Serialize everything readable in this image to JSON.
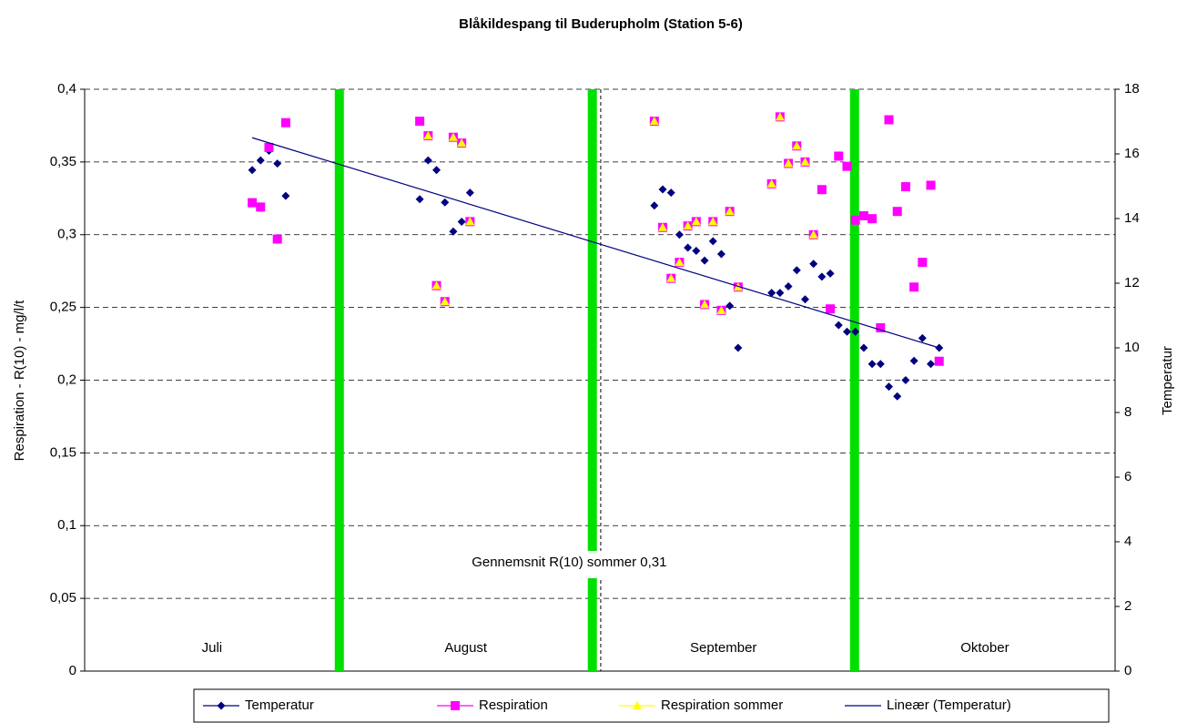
{
  "chart_data": {
    "type": "scatter",
    "title": "Blåkildespang til Buderupholm (Station 5-6)",
    "ylabel": "Respiration - R(10) - mg/l/t",
    "y2label": "Temperatur",
    "annotation": "Gennemsnit R(10) sommer 0,31",
    "month_labels": [
      "Juli",
      "August",
      "September",
      "Oktober"
    ],
    "separators": [
      30.4,
      60.6,
      91.9
    ],
    "separator_color": "#00e000",
    "reference_line": 61.6,
    "xlim": [
      0,
      123
    ],
    "ylim": [
      0,
      0.4
    ],
    "yticks": [
      0,
      {
        "value": 0.05,
        "label": "0,05"
      },
      {
        "value": 0.1,
        "label": "0,1"
      },
      {
        "value": 0.15,
        "label": "0,15"
      },
      {
        "value": 0.2,
        "label": "0,2"
      },
      {
        "value": 0.25,
        "label": "0,25"
      },
      {
        "value": 0.3,
        "label": "0,3"
      },
      {
        "value": 0.35,
        "label": "0,35"
      },
      {
        "value": 0.4,
        "label": "0,4"
      }
    ],
    "y2lim": [
      0,
      18
    ],
    "y2ticks": [
      0,
      2,
      4,
      6,
      8,
      10,
      12,
      14,
      16,
      18
    ],
    "grid": true,
    "legend": "bottom",
    "series": [
      {
        "name": "Temperatur",
        "color": "#000080",
        "marker": "diamond",
        "axis": "y2",
        "x": [
          20,
          21,
          22,
          23,
          24,
          40,
          41,
          42,
          43,
          44,
          45,
          46,
          68,
          69,
          70,
          71,
          72,
          73,
          74,
          75,
          76,
          77,
          78,
          82,
          83,
          84,
          85,
          86,
          87,
          88,
          89,
          90,
          91,
          92,
          93,
          94,
          95,
          96,
          97,
          98,
          99,
          100,
          101,
          102
        ],
        "values": [
          15.5,
          15.8,
          16.1,
          15.7,
          14.7,
          14.6,
          15.8,
          15.5,
          14.5,
          13.6,
          13.9,
          14.8,
          14.4,
          14.9,
          14.8,
          13.5,
          13.1,
          13.0,
          12.7,
          13.3,
          12.9,
          11.3,
          10.0,
          11.7,
          11.7,
          11.9,
          12.4,
          11.5,
          12.6,
          12.2,
          12.3,
          10.7,
          10.5,
          10.5,
          10.0,
          9.5,
          9.5,
          8.8,
          8.5,
          9.0,
          9.6,
          10.3,
          9.5,
          10.0
        ]
      },
      {
        "name": "Respiration",
        "color": "#ff00ff",
        "marker": "square",
        "x": [
          20,
          21,
          22,
          23,
          24,
          40,
          41,
          42,
          43,
          44,
          45,
          46,
          68,
          69,
          70,
          71,
          72,
          73,
          74,
          75,
          76,
          77,
          78,
          82,
          83,
          84,
          85,
          86,
          87,
          88,
          89,
          90,
          91,
          92,
          93,
          94,
          95,
          96,
          97,
          98,
          99,
          100,
          101,
          102
        ],
        "values": [
          0.322,
          0.319,
          0.36,
          0.297,
          0.377,
          0.378,
          0.368,
          0.265,
          0.254,
          0.367,
          0.363,
          0.309,
          0.378,
          0.305,
          0.27,
          0.281,
          0.306,
          0.309,
          0.252,
          0.309,
          0.248,
          0.316,
          0.264,
          0.335,
          0.381,
          0.349,
          0.361,
          0.35,
          0.3,
          0.331,
          0.249,
          0.354,
          0.347,
          0.31,
          0.313,
          0.311,
          0.236,
          0.379,
          0.316,
          0.333,
          0.264,
          0.281,
          0.334,
          0.213
        ]
      },
      {
        "name": "Respiration sommer",
        "color": "#ffff00",
        "marker": "triangle",
        "x": [
          41,
          42,
          43,
          44,
          45,
          46,
          68,
          69,
          70,
          71,
          72,
          73,
          74,
          75,
          76,
          77,
          78,
          82,
          83,
          84,
          85,
          86,
          87
        ],
        "values": [
          0.368,
          0.265,
          0.254,
          0.367,
          0.363,
          0.309,
          0.378,
          0.305,
          0.27,
          0.281,
          0.306,
          0.309,
          0.252,
          0.309,
          0.248,
          0.316,
          0.264,
          0.335,
          0.381,
          0.349,
          0.361,
          0.35,
          0.3
        ]
      },
      {
        "name": "Lineær (Temperatur)",
        "color": "#000080",
        "marker": "none",
        "style": "line",
        "axis": "y2",
        "x": [
          20,
          102
        ],
        "values": [
          16.5,
          10.0
        ]
      }
    ]
  }
}
